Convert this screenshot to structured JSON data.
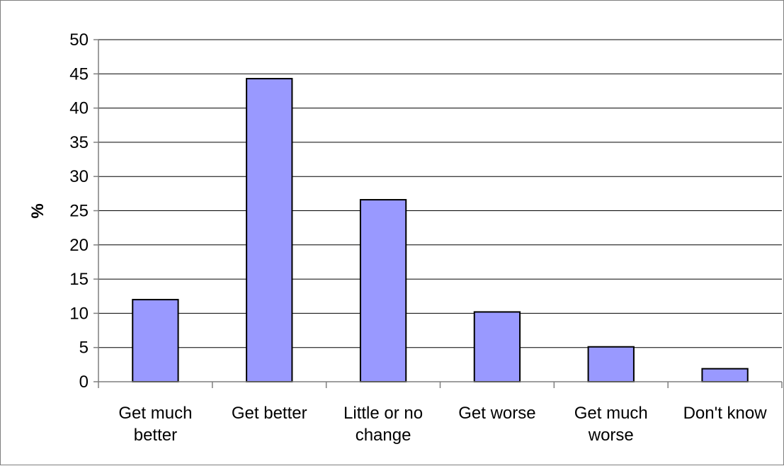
{
  "chart_data": {
    "type": "bar",
    "categories": [
      [
        "Get much",
        "better"
      ],
      [
        "Get better"
      ],
      [
        "Little or no",
        "change"
      ],
      [
        "Get worse"
      ],
      [
        "Get much",
        "worse"
      ],
      [
        "Don't know"
      ]
    ],
    "values": [
      12,
      44.3,
      26.6,
      10.2,
      5.1,
      1.9
    ],
    "title": "",
    "xlabel": "",
    "ylabel": "%",
    "ylim": [
      0,
      50
    ],
    "yticks": [
      0,
      5,
      10,
      15,
      20,
      25,
      30,
      35,
      40,
      45,
      50
    ],
    "grid": true,
    "legend": "none",
    "colors": {
      "bar_fill": "#9999ff",
      "bar_stroke": "#000000",
      "grid": "#000000",
      "axis": "#7f7f7f"
    }
  }
}
